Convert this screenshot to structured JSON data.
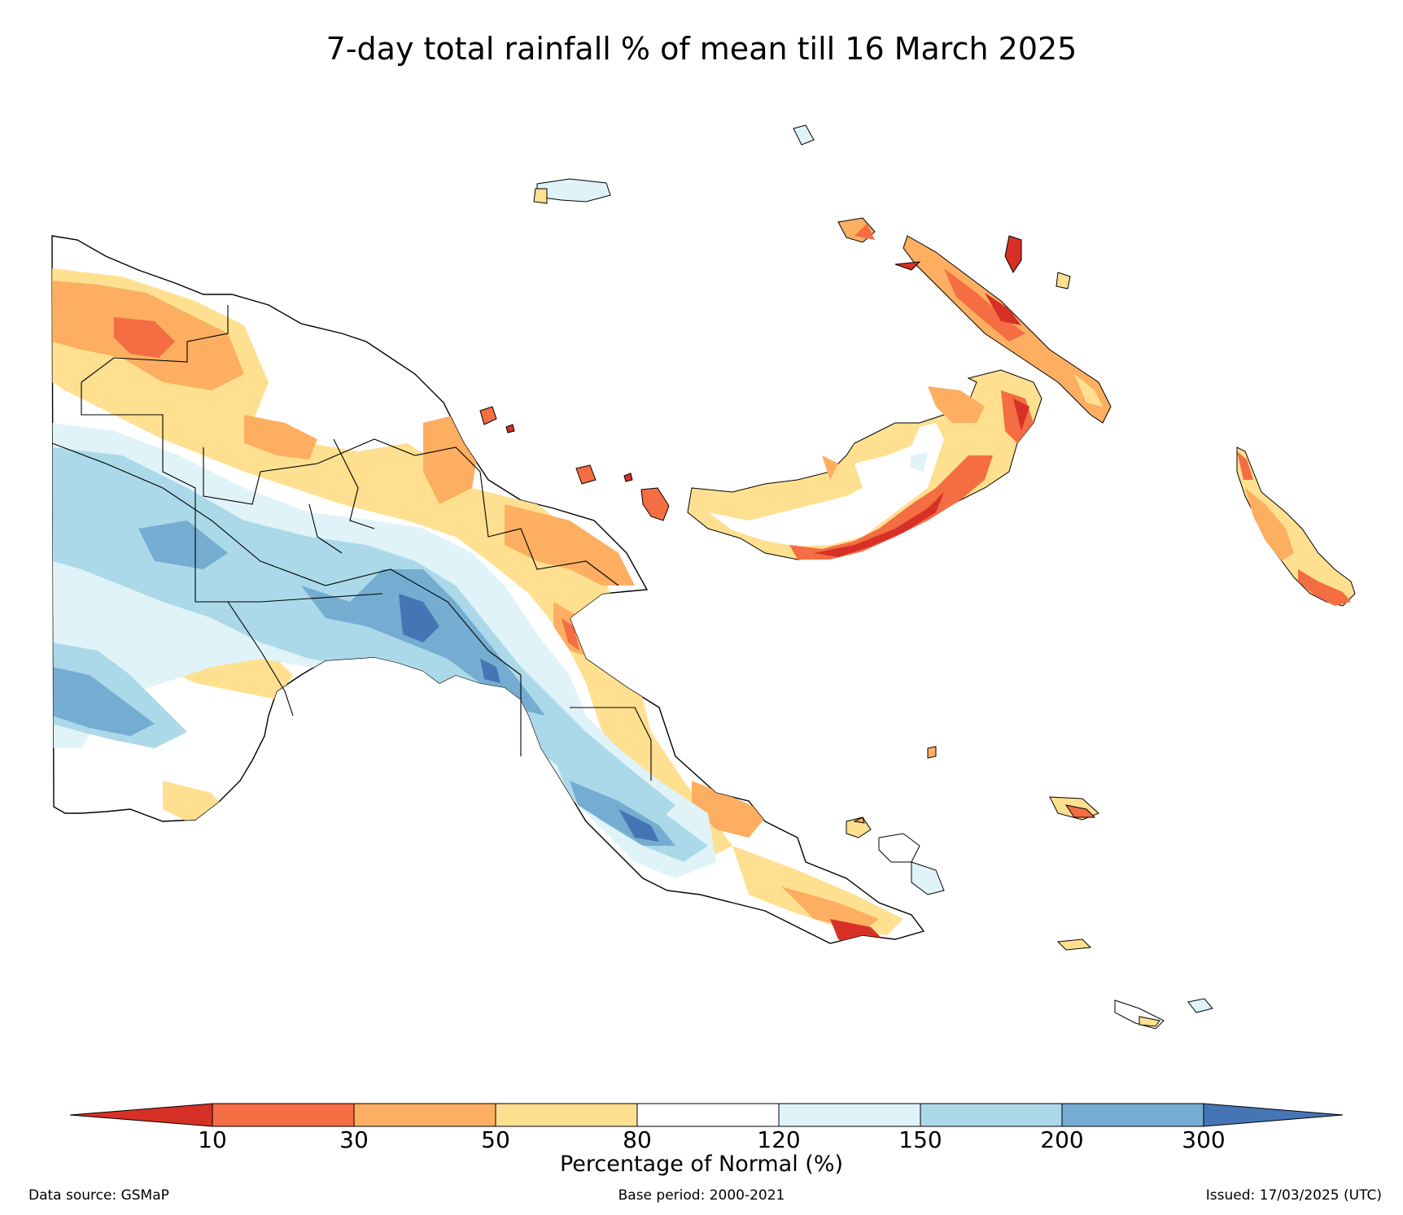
{
  "title": "7-day total rainfall % of mean till 16 March 2025",
  "colorbar": {
    "label": "Percentage of Normal (%)",
    "ticks": [
      "10",
      "30",
      "50",
      "80",
      "120",
      "150",
      "200",
      "300"
    ],
    "colors": {
      "under": "#d73027",
      "b10_30": "#f46d43",
      "b30_50": "#fdae61",
      "b50_80": "#fee090",
      "b80_120": "#ffffff",
      "b120_150": "#e0f3f8",
      "b150_200": "#abd9e9",
      "b200_300": "#74add1",
      "over": "#4575b4"
    }
  },
  "footer": {
    "source": "Data source: GSMaP",
    "base_period": "Base period: 2000-2021",
    "issued": "Issued: 17/03/2025 (UTC)"
  }
}
